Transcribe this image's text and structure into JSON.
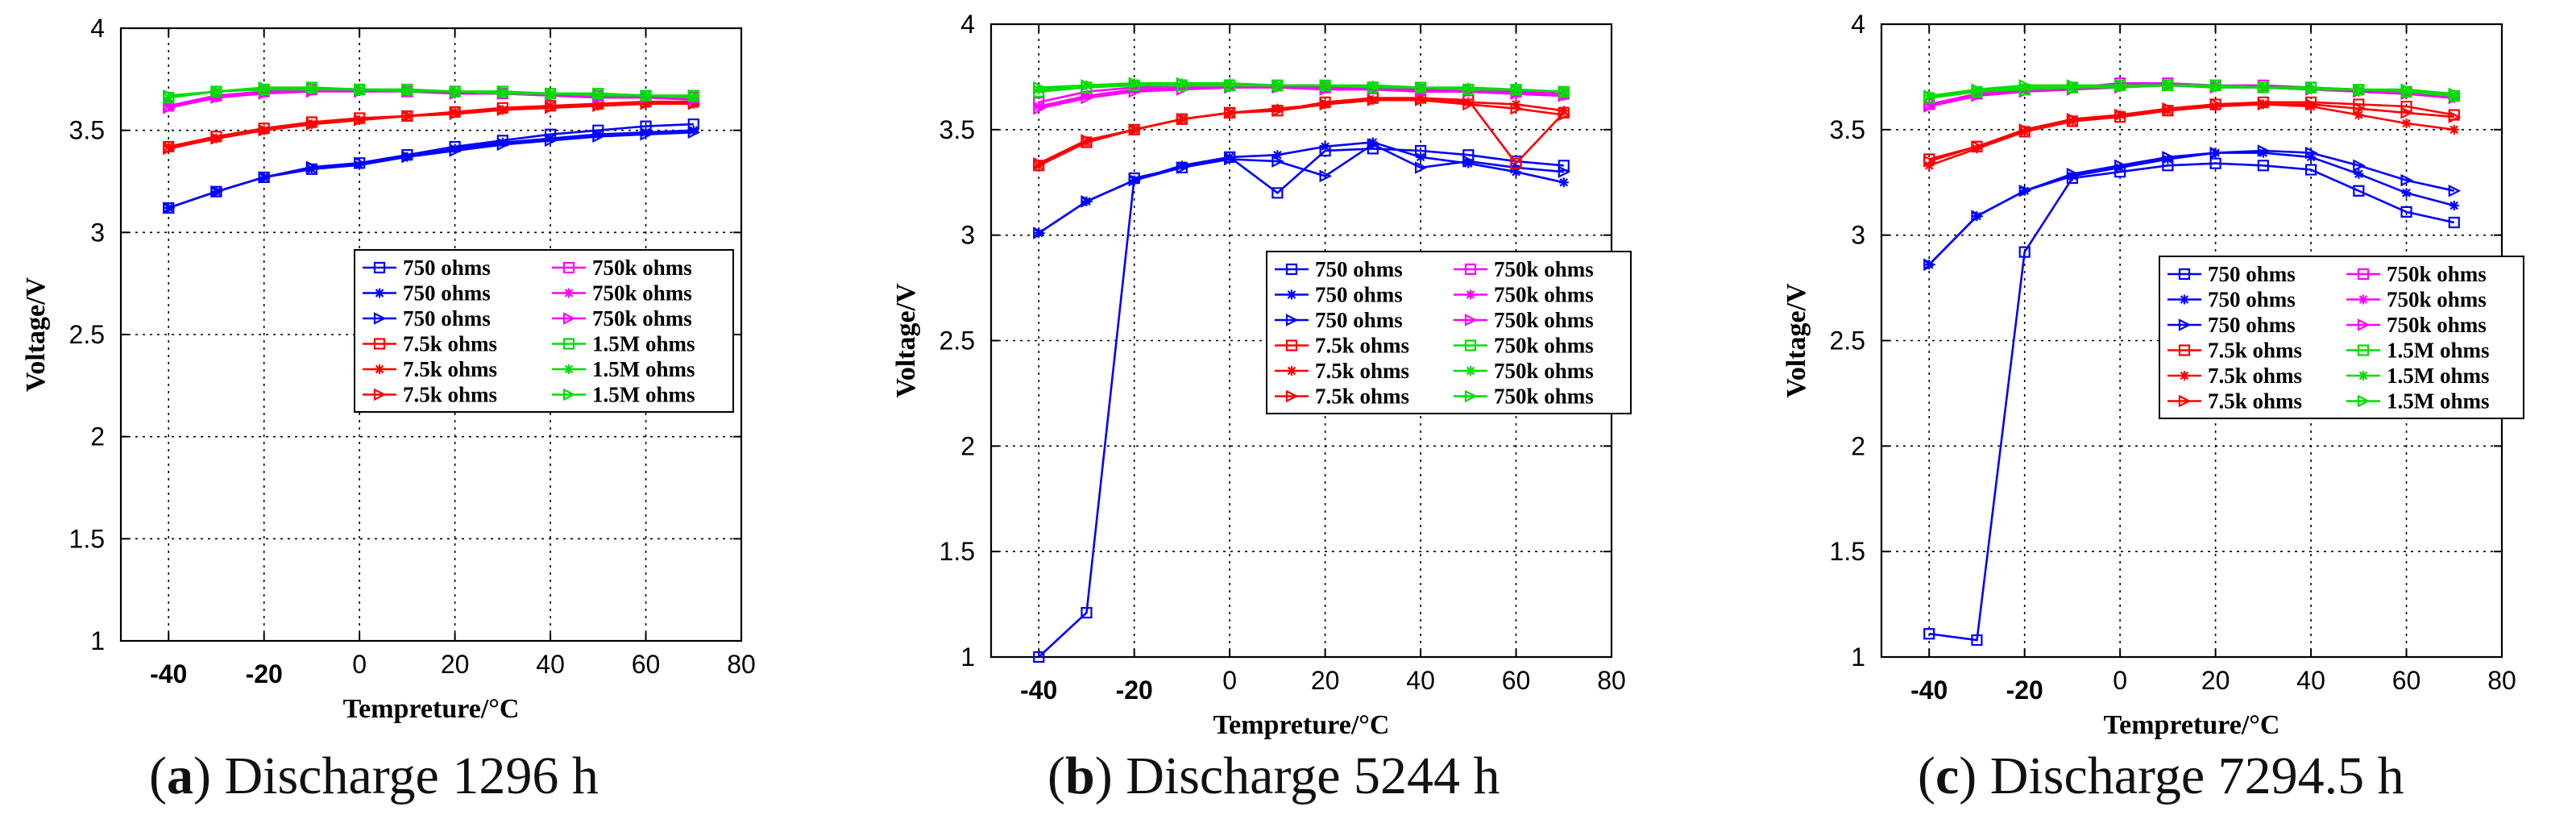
{
  "chart_data": [
    {
      "type": "line",
      "panel": "a",
      "caption_letter": "a",
      "caption_text": "Discharge 1296 h",
      "xlabel": "Tempreture/°C",
      "ylabel": "Voltage/V",
      "xlim": [
        -50,
        80
      ],
      "ylim": [
        1,
        4
      ],
      "xticks": [
        {
          "v": -40,
          "label": "-40"
        },
        {
          "v": -20,
          "label": "-20"
        },
        {
          "v": 0,
          "label": "0"
        },
        {
          "v": 20,
          "label": "20"
        },
        {
          "v": 40,
          "label": "40"
        },
        {
          "v": 60,
          "label": "60"
        },
        {
          "v": 80,
          "label": "80"
        }
      ],
      "yticks": [
        {
          "v": 1,
          "label": "1"
        },
        {
          "v": 1.5,
          "label": "1.5"
        },
        {
          "v": 2,
          "label": "2"
        },
        {
          "v": 2.5,
          "label": "2.5"
        },
        {
          "v": 3,
          "label": "3"
        },
        {
          "v": 3.5,
          "label": "3.5"
        },
        {
          "v": 4,
          "label": "4"
        }
      ],
      "grid": true,
      "legend_placement": "center-right",
      "x": [
        -40,
        -30,
        -20,
        -10,
        0,
        10,
        20,
        30,
        40,
        50,
        60,
        70
      ],
      "series": [
        {
          "name": "750 ohms",
          "color": "#0000ff",
          "marker": "square",
          "values": [
            3.12,
            3.2,
            3.27,
            3.31,
            3.34,
            3.38,
            3.42,
            3.45,
            3.48,
            3.5,
            3.52,
            3.53
          ]
        },
        {
          "name": "750 ohms",
          "color": "#0000ff",
          "marker": "star",
          "values": [
            3.12,
            3.2,
            3.27,
            3.31,
            3.33,
            3.37,
            3.41,
            3.44,
            3.46,
            3.48,
            3.49,
            3.5
          ]
        },
        {
          "name": "750 ohms",
          "color": "#0000ff",
          "marker": "triangle",
          "values": [
            3.12,
            3.2,
            3.27,
            3.32,
            3.34,
            3.37,
            3.4,
            3.43,
            3.45,
            3.47,
            3.48,
            3.49
          ]
        },
        {
          "name": "7.5k ohms",
          "color": "#ff0000",
          "marker": "square",
          "values": [
            3.42,
            3.47,
            3.51,
            3.54,
            3.56,
            3.57,
            3.59,
            3.61,
            3.62,
            3.63,
            3.64,
            3.64
          ]
        },
        {
          "name": "7.5k ohms",
          "color": "#ff0000",
          "marker": "star",
          "values": [
            3.42,
            3.46,
            3.5,
            3.53,
            3.55,
            3.57,
            3.59,
            3.6,
            3.62,
            3.62,
            3.63,
            3.63
          ]
        },
        {
          "name": "7.5k ohms",
          "color": "#ff0000",
          "marker": "triangle",
          "values": [
            3.41,
            3.46,
            3.5,
            3.53,
            3.55,
            3.57,
            3.58,
            3.6,
            3.61,
            3.62,
            3.63,
            3.63
          ]
        },
        {
          "name": "750k ohms",
          "color": "#ff00ff",
          "marker": "square",
          "values": [
            3.62,
            3.67,
            3.69,
            3.7,
            3.7,
            3.69,
            3.69,
            3.68,
            3.68,
            3.67,
            3.67,
            3.66
          ]
        },
        {
          "name": "750k ohms",
          "color": "#ff00ff",
          "marker": "star",
          "values": [
            3.62,
            3.66,
            3.69,
            3.7,
            3.7,
            3.69,
            3.68,
            3.68,
            3.67,
            3.67,
            3.66,
            3.66
          ]
        },
        {
          "name": "750k ohms",
          "color": "#ff00ff",
          "marker": "triangle",
          "values": [
            3.61,
            3.66,
            3.68,
            3.69,
            3.69,
            3.69,
            3.68,
            3.68,
            3.67,
            3.66,
            3.66,
            3.65
          ]
        },
        {
          "name": "1.5M ohms",
          "color": "#00dd00",
          "marker": "square",
          "values": [
            3.66,
            3.69,
            3.7,
            3.71,
            3.7,
            3.7,
            3.69,
            3.69,
            3.68,
            3.68,
            3.67,
            3.67
          ]
        },
        {
          "name": "1.5M ohms",
          "color": "#00dd00",
          "marker": "star",
          "values": [
            3.66,
            3.69,
            3.7,
            3.7,
            3.7,
            3.69,
            3.69,
            3.68,
            3.68,
            3.67,
            3.67,
            3.66
          ]
        },
        {
          "name": "1.5M ohms",
          "color": "#00dd00",
          "marker": "triangle",
          "values": [
            3.67,
            3.69,
            3.71,
            3.71,
            3.7,
            3.7,
            3.69,
            3.69,
            3.68,
            3.68,
            3.67,
            3.67
          ]
        }
      ]
    },
    {
      "type": "line",
      "panel": "b",
      "caption_letter": "b",
      "caption_text": "Discharge 5244 h",
      "xlabel": "Tempreture/°C",
      "ylabel": "Voltage/V",
      "xlim": [
        -50,
        80
      ],
      "ylim": [
        1,
        4
      ],
      "xticks": [
        {
          "v": -40,
          "label": "-40"
        },
        {
          "v": -20,
          "label": "-20"
        },
        {
          "v": 0,
          "label": "0"
        },
        {
          "v": 20,
          "label": "20"
        },
        {
          "v": 40,
          "label": "40"
        },
        {
          "v": 60,
          "label": "60"
        },
        {
          "v": 80,
          "label": "80"
        }
      ],
      "yticks": [
        {
          "v": 1,
          "label": "1"
        },
        {
          "v": 1.5,
          "label": "1.5"
        },
        {
          "v": 2,
          "label": "2"
        },
        {
          "v": 2.5,
          "label": "2.5"
        },
        {
          "v": 3,
          "label": "3"
        },
        {
          "v": 3.5,
          "label": "3.5"
        },
        {
          "v": 4,
          "label": "4"
        }
      ],
      "grid": true,
      "legend_placement": "center-right",
      "x": [
        -40,
        -30,
        -20,
        -10,
        0,
        10,
        20,
        30,
        40,
        50,
        60,
        70
      ],
      "series": [
        {
          "name": "750 ohms",
          "color": "#0000ff",
          "marker": "square",
          "values": [
            1.0,
            1.21,
            3.27,
            3.32,
            3.37,
            3.2,
            3.4,
            3.41,
            3.4,
            3.38,
            3.35,
            3.33
          ]
        },
        {
          "name": "750 ohms",
          "color": "#0000ff",
          "marker": "star",
          "values": [
            3.01,
            3.16,
            3.26,
            3.33,
            3.37,
            3.38,
            3.42,
            3.44,
            3.37,
            3.34,
            3.3,
            3.25
          ]
        },
        {
          "name": "750 ohms",
          "color": "#0000ff",
          "marker": "triangle",
          "values": [
            3.01,
            3.16,
            3.26,
            3.32,
            3.36,
            3.35,
            3.28,
            3.43,
            3.32,
            3.35,
            3.32,
            3.3
          ]
        },
        {
          "name": "7.5k ohms",
          "color": "#ff0000",
          "marker": "square",
          "values": [
            3.33,
            3.44,
            3.5,
            3.55,
            3.58,
            3.59,
            3.63,
            3.65,
            3.65,
            3.64,
            3.34,
            3.58
          ]
        },
        {
          "name": "7.5k ohms",
          "color": "#ff0000",
          "marker": "star",
          "values": [
            3.33,
            3.44,
            3.5,
            3.55,
            3.58,
            3.6,
            3.62,
            3.64,
            3.65,
            3.63,
            3.62,
            3.59
          ]
        },
        {
          "name": "7.5k ohms",
          "color": "#ff0000",
          "marker": "triangle",
          "values": [
            3.34,
            3.45,
            3.5,
            3.55,
            3.58,
            3.59,
            3.62,
            3.64,
            3.64,
            3.62,
            3.6,
            3.57
          ]
        },
        {
          "name": "750k ohms",
          "color": "#ff00ff",
          "marker": "square",
          "values": [
            3.63,
            3.68,
            3.7,
            3.71,
            3.71,
            3.71,
            3.7,
            3.7,
            3.69,
            3.69,
            3.68,
            3.67
          ]
        },
        {
          "name": "750k ohms",
          "color": "#ff00ff",
          "marker": "star",
          "values": [
            3.61,
            3.66,
            3.69,
            3.7,
            3.7,
            3.7,
            3.7,
            3.69,
            3.69,
            3.68,
            3.67,
            3.66
          ]
        },
        {
          "name": "750k ohms",
          "color": "#ff00ff",
          "marker": "triangle",
          "values": [
            3.6,
            3.65,
            3.68,
            3.69,
            3.7,
            3.7,
            3.69,
            3.69,
            3.68,
            3.68,
            3.67,
            3.66
          ]
        },
        {
          "name": "750k ohms",
          "color": "#00dd00",
          "marker": "square",
          "values": [
            3.68,
            3.7,
            3.71,
            3.71,
            3.71,
            3.71,
            3.71,
            3.7,
            3.7,
            3.69,
            3.69,
            3.68
          ]
        },
        {
          "name": "750k ohms",
          "color": "#00dd00",
          "marker": "star",
          "values": [
            3.69,
            3.71,
            3.72,
            3.72,
            3.72,
            3.71,
            3.71,
            3.71,
            3.7,
            3.7,
            3.69,
            3.68
          ]
        },
        {
          "name": "750k ohms",
          "color": "#00dd00",
          "marker": "triangle",
          "values": [
            3.7,
            3.71,
            3.72,
            3.72,
            3.71,
            3.71,
            3.71,
            3.7,
            3.7,
            3.69,
            3.69,
            3.68
          ]
        }
      ]
    },
    {
      "type": "line",
      "panel": "c",
      "caption_letter": "c",
      "caption_text": "Discharge 7294.5 h",
      "xlabel": "Tempreture/°C",
      "ylabel": "Voltage/V",
      "xlim": [
        -50,
        80
      ],
      "ylim": [
        1,
        4
      ],
      "xticks": [
        {
          "v": -40,
          "label": "-40"
        },
        {
          "v": -20,
          "label": "-20"
        },
        {
          "v": 0,
          "label": "0"
        },
        {
          "v": 20,
          "label": "20"
        },
        {
          "v": 40,
          "label": "40"
        },
        {
          "v": 60,
          "label": "60"
        },
        {
          "v": 80,
          "label": "80"
        }
      ],
      "yticks": [
        {
          "v": 1,
          "label": "1"
        },
        {
          "v": 1.5,
          "label": "1.5"
        },
        {
          "v": 2,
          "label": "2"
        },
        {
          "v": 2.5,
          "label": "2.5"
        },
        {
          "v": 3,
          "label": "3"
        },
        {
          "v": 3.5,
          "label": "3.5"
        },
        {
          "v": 4,
          "label": "4"
        }
      ],
      "grid": true,
      "legend_placement": "center-right",
      "x": [
        -40,
        -30,
        -20,
        -10,
        0,
        10,
        20,
        30,
        40,
        50,
        60,
        70
      ],
      "series": [
        {
          "name": "750 ohms",
          "color": "#0000ff",
          "marker": "square",
          "values": [
            1.11,
            1.08,
            2.92,
            3.27,
            3.3,
            3.33,
            3.34,
            3.33,
            3.31,
            3.21,
            3.11,
            3.06
          ]
        },
        {
          "name": "750 ohms",
          "color": "#0000ff",
          "marker": "star",
          "values": [
            2.86,
            3.09,
            3.21,
            3.28,
            3.32,
            3.36,
            3.39,
            3.39,
            3.37,
            3.29,
            3.2,
            3.14
          ]
        },
        {
          "name": "750 ohms",
          "color": "#0000ff",
          "marker": "triangle",
          "values": [
            2.86,
            3.09,
            3.21,
            3.29,
            3.33,
            3.37,
            3.39,
            3.4,
            3.39,
            3.33,
            3.26,
            3.21
          ]
        },
        {
          "name": "7.5k ohms",
          "color": "#ff0000",
          "marker": "square",
          "values": [
            3.36,
            3.42,
            3.49,
            3.54,
            3.56,
            3.59,
            3.62,
            3.63,
            3.63,
            3.62,
            3.61,
            3.57
          ]
        },
        {
          "name": "7.5k ohms",
          "color": "#ff0000",
          "marker": "star",
          "values": [
            3.33,
            3.41,
            3.49,
            3.54,
            3.57,
            3.59,
            3.61,
            3.62,
            3.61,
            3.57,
            3.53,
            3.5
          ]
        },
        {
          "name": "7.5k ohms",
          "color": "#ff0000",
          "marker": "triangle",
          "values": [
            3.35,
            3.42,
            3.5,
            3.55,
            3.57,
            3.6,
            3.62,
            3.62,
            3.62,
            3.6,
            3.58,
            3.56
          ]
        },
        {
          "name": "750k ohms",
          "color": "#ff00ff",
          "marker": "square",
          "values": [
            3.62,
            3.67,
            3.69,
            3.7,
            3.72,
            3.72,
            3.71,
            3.71,
            3.7,
            3.69,
            3.68,
            3.66
          ]
        },
        {
          "name": "750k ohms",
          "color": "#ff00ff",
          "marker": "star",
          "values": [
            3.62,
            3.67,
            3.69,
            3.7,
            3.71,
            3.71,
            3.71,
            3.7,
            3.69,
            3.68,
            3.67,
            3.65
          ]
        },
        {
          "name": "750k ohms",
          "color": "#ff00ff",
          "marker": "triangle",
          "values": [
            3.61,
            3.66,
            3.68,
            3.69,
            3.7,
            3.71,
            3.7,
            3.7,
            3.69,
            3.68,
            3.67,
            3.65
          ]
        },
        {
          "name": "1.5M ohms",
          "color": "#00dd00",
          "marker": "square",
          "values": [
            3.65,
            3.68,
            3.69,
            3.7,
            3.71,
            3.71,
            3.71,
            3.7,
            3.7,
            3.69,
            3.68,
            3.66
          ]
        },
        {
          "name": "1.5M ohms",
          "color": "#00dd00",
          "marker": "star",
          "values": [
            3.66,
            3.68,
            3.7,
            3.7,
            3.7,
            3.71,
            3.7,
            3.7,
            3.69,
            3.69,
            3.68,
            3.66
          ]
        },
        {
          "name": "1.5M ohms",
          "color": "#00dd00",
          "marker": "triangle",
          "values": [
            3.66,
            3.69,
            3.71,
            3.71,
            3.71,
            3.71,
            3.71,
            3.7,
            3.7,
            3.69,
            3.69,
            3.67
          ]
        }
      ]
    }
  ]
}
